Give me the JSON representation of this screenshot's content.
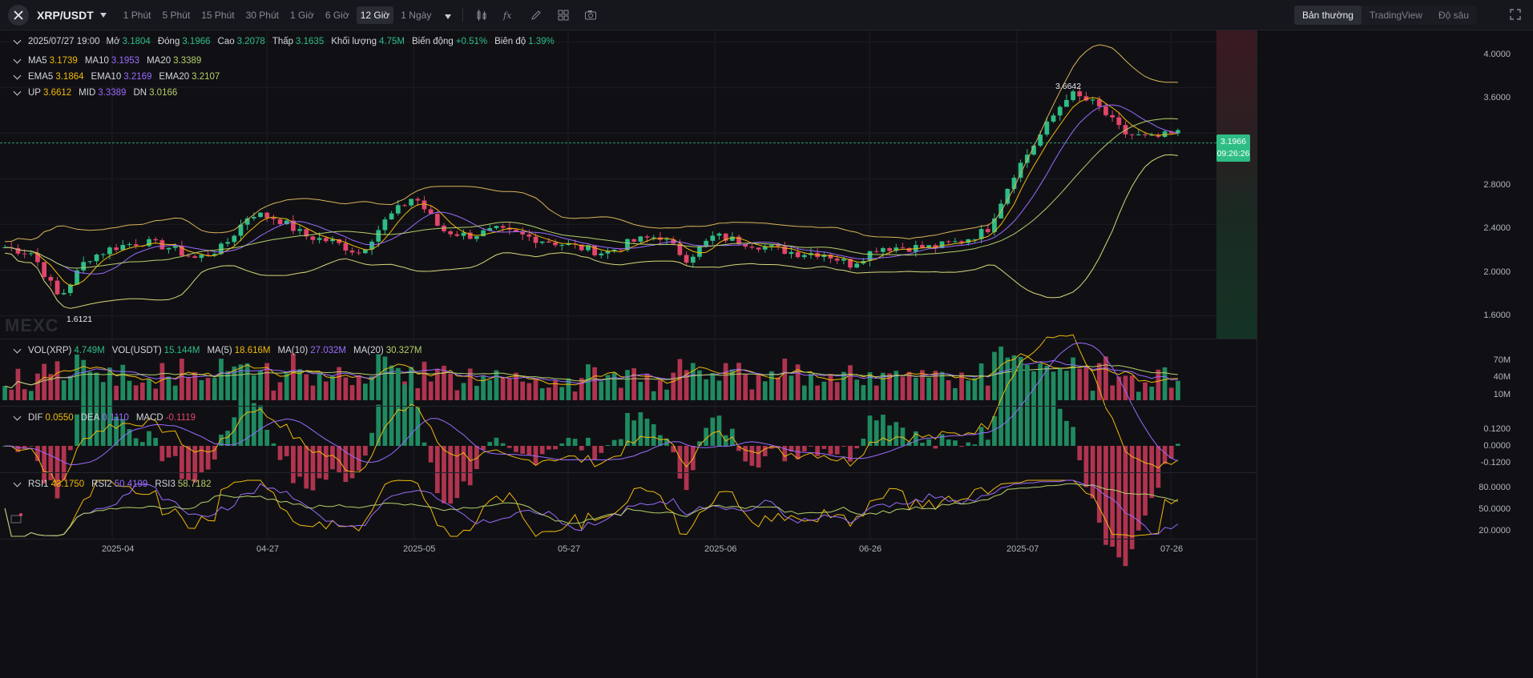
{
  "toolbar": {
    "symbol": "XRP/USDT",
    "intervals": [
      "1 Phút",
      "5 Phút",
      "15 Phút",
      "30 Phút",
      "1 Giờ",
      "6 Giờ",
      "12 Giờ",
      "1 Ngày"
    ],
    "active_interval": "12 Giờ",
    "views": [
      "Bản thường",
      "TradingView",
      "Độ sâu"
    ],
    "active_view": "Bản thường"
  },
  "ohlc": {
    "date": "2025/07/27 19:00",
    "open_label": "Mở",
    "open": "3.1804",
    "close_label": "Đóng",
    "close": "3.1966",
    "high_label": "Cao",
    "high": "3.2078",
    "low_label": "Thấp",
    "low": "3.1635",
    "vol_label": "Khối lượng",
    "vol": "4.75M",
    "change_label": "Biến động",
    "change": "+0.51%",
    "amp_label": "Biên độ",
    "amp": "1.39%"
  },
  "ma": {
    "ma5_label": "MA5",
    "ma5": "3.1739",
    "ma10_label": "MA10",
    "ma10": "3.1953",
    "ma20_label": "MA20",
    "ma20": "3.3389"
  },
  "ema": {
    "ema5_label": "EMA5",
    "ema5": "3.1864",
    "ema10_label": "EMA10",
    "ema10": "3.2169",
    "ema20_label": "EMA20",
    "ema20": "3.2107"
  },
  "boll": {
    "up_label": "UP",
    "up": "3.6612",
    "mid_label": "MID",
    "mid": "3.3389",
    "dn_label": "DN",
    "dn": "3.0166"
  },
  "price_axis": [
    "4.0000",
    "3.6000",
    "2.8000",
    "2.4000",
    "2.0000",
    "1.6000"
  ],
  "last_price": "3.1966",
  "countdown": "09:26:26",
  "high_marker": "3.6642",
  "low_marker": "1.6121",
  "watermark": "MEXC",
  "volume": {
    "vol_xrp_label": "VOL(XRP)",
    "vol_xrp": "4.749M",
    "vol_usdt_label": "VOL(USDT)",
    "vol_usdt": "15.144M",
    "ma5_label": "MA(5)",
    "ma5": "18.616M",
    "ma10_label": "MA(10)",
    "ma10": "27.032M",
    "ma20_label": "MA(20)",
    "ma20": "30.327M",
    "axis": [
      "70M",
      "40M",
      "10M"
    ]
  },
  "macd": {
    "dif_label": "DIF",
    "dif": "0.0550",
    "dea_label": "DEA",
    "dea": "0.1110",
    "macd_label": "MACD",
    "macd": "-0.1119",
    "axis": [
      "0.1200",
      "0.0000",
      "-0.1200"
    ]
  },
  "rsi": {
    "rsi1_label": "RSI1",
    "rsi1": "43.1750",
    "rsi2_label": "RSI2",
    "rsi2": "50.4199",
    "rsi3_label": "RSI3",
    "rsi3": "58.7182",
    "axis": [
      "80.0000",
      "50.0000",
      "20.0000"
    ]
  },
  "dates": [
    "2025-04",
    "04-27",
    "2025-05",
    "05-27",
    "2025-06",
    "06-26",
    "2025-07",
    "07-26"
  ],
  "colors": {
    "up": "#2ebd85",
    "down": "#e2466a",
    "ma5": "#f0b90b",
    "ma10": "#9b6bff",
    "ma20": "#b4cf6a"
  },
  "chart_data": {
    "type": "candlestick",
    "close_trend": [
      2.2,
      2.15,
      1.75,
      2.1,
      2.2,
      2.25,
      2.2,
      2.1,
      2.2,
      2.5,
      2.45,
      2.3,
      2.25,
      2.15,
      2.45,
      2.65,
      2.35,
      2.3,
      2.35,
      2.3,
      2.25,
      2.2,
      2.15,
      2.25,
      2.3,
      2.1,
      2.3,
      2.25,
      2.2,
      2.15,
      2.15,
      2.05,
      2.2,
      2.2,
      2.2,
      2.25,
      2.35,
      2.85,
      3.2,
      3.55,
      3.45,
      3.2,
      3.15,
      3.2
    ],
    "range": [
      1.4,
      4.1
    ]
  }
}
